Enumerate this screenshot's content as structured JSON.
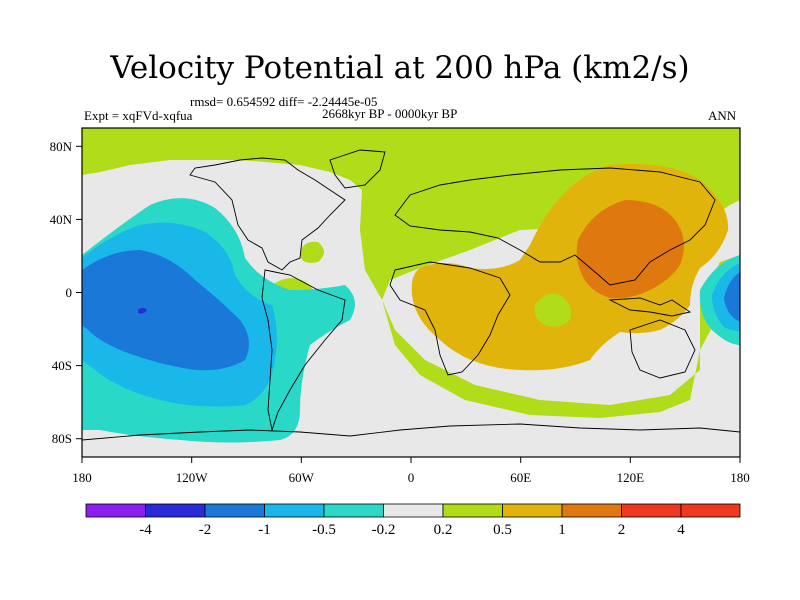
{
  "title": "Velocity Potential at 200 hPa (km2/s)",
  "stats": "rmsd= 0.654592 diff= -2.24445e-05",
  "experiment": "Expt = xqFVd-xqfua",
  "period": "2668kyr BP - 0000kyr BP",
  "season": "ANN",
  "axes": {
    "x_ticks": [
      "180",
      "120W",
      "60W",
      "0",
      "60E",
      "120E",
      "180"
    ],
    "y_ticks": [
      "80N",
      "40N",
      "0",
      "40S",
      "80S"
    ]
  },
  "colorbar": {
    "labels": [
      "-4",
      "-2",
      "-1",
      "-0.5",
      "-0.2",
      "0.2",
      "0.5",
      "1",
      "2",
      "4"
    ],
    "colors": [
      "#8a1ff0",
      "#2a2ad8",
      "#1a78d8",
      "#1ab8e8",
      "#2ad8c8",
      "#e8e8e8",
      "#b0dc1a",
      "#e0b40a",
      "#e07810",
      "#f03820"
    ]
  },
  "field_colors": {
    "bg": "#e8e8e8",
    "l1": "#1a78d8",
    "l2": "#1ab8e8",
    "l3": "#2ad8c8",
    "u1": "#b0dc1a",
    "u2": "#e0b40a",
    "u3": "#e07810",
    "deep": "#2a2ad8"
  }
}
